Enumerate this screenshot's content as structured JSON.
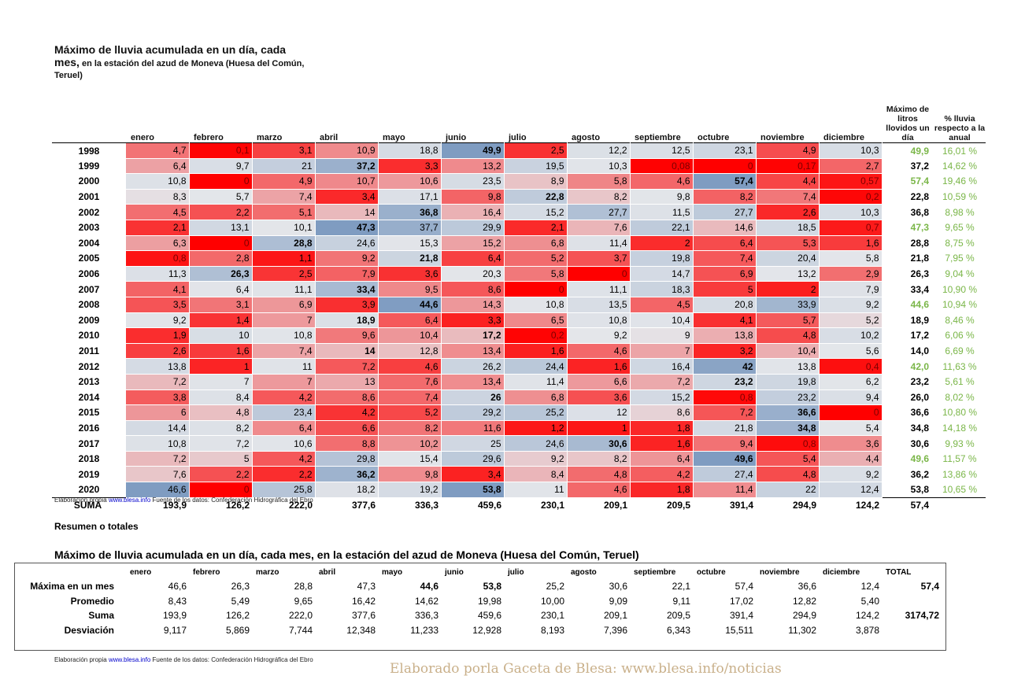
{
  "title": {
    "line1": "Máximo de lluvia acumulada en un día, cada",
    "line2_bold": "mes,",
    "line2_small": " en la estación del azud de Moneva (Huesa del Común,",
    "line3_small": "Teruel)"
  },
  "months": [
    "enero",
    "febrero",
    "marzo",
    "abril",
    "mayo",
    "junio",
    "julio",
    "agosto",
    "septiembre",
    "octubre",
    "noviembre",
    "diciembre"
  ],
  "max_header": "Máximo de litros llovidos un día",
  "pct_header": "% lluvia respecto a la anual",
  "rows": [
    {
      "year": "1998",
      "v": [
        "4,7",
        "0,1",
        "3,1",
        "10,9",
        "18,8",
        "49,9",
        "2,5",
        "12,2",
        "12,5",
        "23,1",
        "4,9",
        "10,3"
      ],
      "max": "49,9",
      "pct": "16,01 %",
      "green": true
    },
    {
      "year": "1999",
      "v": [
        "6,4",
        "9,7",
        "21",
        "37,2",
        "3,3",
        "13,2",
        "19,5",
        "10,3",
        "0,08",
        "0",
        "0,17",
        "2,7"
      ],
      "max": "37,2",
      "pct": "14,62 %",
      "green": false
    },
    {
      "year": "2000",
      "v": [
        "10,8",
        "0",
        "4,9",
        "10,7",
        "10,6",
        "23,5",
        "8,9",
        "5,8",
        "4,6",
        "57,4",
        "4,4",
        "0,57"
      ],
      "max": "57,4",
      "pct": "19,46 %",
      "green": true
    },
    {
      "year": "2001",
      "v": [
        "8,3",
        "5,7",
        "7,4",
        "3,4",
        "17,1",
        "9,8",
        "22,8",
        "8,2",
        "9,8",
        "8,2",
        "7,4",
        "0,2"
      ],
      "max": "22,8",
      "pct": "10,59 %",
      "green": false
    },
    {
      "year": "2002",
      "v": [
        "4,5",
        "2,2",
        "5,1",
        "14",
        "36,8",
        "16,4",
        "15,2",
        "27,7",
        "11,5",
        "27,7",
        "2,6",
        "10,3"
      ],
      "max": "36,8",
      "pct": "8,98 %",
      "green": false
    },
    {
      "year": "2003",
      "v": [
        "2,1",
        "13,1",
        "10,1",
        "47,3",
        "37,7",
        "29,9",
        "2,1",
        "7,6",
        "22,1",
        "14,6",
        "18,5",
        "0,7"
      ],
      "max": "47,3",
      "pct": "9,65 %",
      "green": true
    },
    {
      "year": "2004",
      "v": [
        "6,3",
        "0",
        "28,8",
        "24,6",
        "15,3",
        "15,2",
        "6,8",
        "11,4",
        "2",
        "6,4",
        "5,3",
        "1,6"
      ],
      "max": "28,8",
      "pct": "8,75 %",
      "green": false
    },
    {
      "year": "2005",
      "v": [
        "0,8",
        "2,8",
        "1,1",
        "9,2",
        "21,8",
        "6,4",
        "5,2",
        "3,7",
        "19,8",
        "7,4",
        "20,4",
        "5,8"
      ],
      "max": "21,8",
      "pct": "7,95 %",
      "green": false
    },
    {
      "year": "2006",
      "v": [
        "11,3",
        "26,3",
        "2,5",
        "7,9",
        "3,6",
        "20,3",
        "5,8",
        "0",
        "14,7",
        "6,9",
        "13,2",
        "2,9"
      ],
      "max": "26,3",
      "pct": "9,04 %",
      "green": false
    },
    {
      "year": "2007",
      "v": [
        "4,1",
        "6,4",
        "11,1",
        "33,4",
        "9,5",
        "8,6",
        "0",
        "11,1",
        "18,3",
        "5",
        "2",
        "7,9"
      ],
      "max": "33,4",
      "pct": "10,90 %",
      "green": false
    },
    {
      "year": "2008",
      "v": [
        "3,5",
        "3,1",
        "6,9",
        "3,9",
        "44,6",
        "14,3",
        "10,8",
        "13,5",
        "4,5",
        "20,8",
        "33,9",
        "9,2"
      ],
      "max": "44,6",
      "pct": "10,94 %",
      "green": true
    },
    {
      "year": "2009",
      "v": [
        "9,2",
        "1,4",
        "7",
        "18,9",
        "6,4",
        "3,3",
        "6,5",
        "10,8",
        "10,4",
        "4,1",
        "5,7",
        "5,2"
      ],
      "max": "18,9",
      "pct": "8,46 %",
      "green": false
    },
    {
      "year": "2010",
      "v": [
        "1,9",
        "10",
        "10,8",
        "9,6",
        "10,4",
        "17,2",
        "0,2",
        "9,2",
        "9",
        "13,8",
        "4,8",
        "10,2"
      ],
      "max": "17,2",
      "pct": "6,06 %",
      "green": false
    },
    {
      "year": "2011",
      "v": [
        "2,6",
        "1,6",
        "7,4",
        "14",
        "12,8",
        "13,4",
        "1,6",
        "4,6",
        "7",
        "3,2",
        "10,4",
        "5,6"
      ],
      "max": "14,0",
      "pct": "6,69 %",
      "green": false
    },
    {
      "year": "2012",
      "v": [
        "13,8",
        "1",
        "11",
        "7,2",
        "4,6",
        "26,2",
        "24,4",
        "1,6",
        "16,4",
        "42",
        "13,8",
        "0,4"
      ],
      "max": "42,0",
      "pct": "11,63 %",
      "green": true
    },
    {
      "year": "2013",
      "v": [
        "7,2",
        "7",
        "7",
        "13",
        "7,6",
        "13,4",
        "11,4",
        "6,6",
        "7,2",
        "23,2",
        "19,8",
        "6,2"
      ],
      "max": "23,2",
      "pct": "5,61 %",
      "green": false
    },
    {
      "year": "2014",
      "v": [
        "3,8",
        "8,4",
        "4,2",
        "8,6",
        "7,4",
        "26",
        "6,8",
        "3,6",
        "15,2",
        "0,8",
        "23,2",
        "9,4"
      ],
      "max": "26,0",
      "pct": "8,02 %",
      "green": false
    },
    {
      "year": "2015",
      "v": [
        "6",
        "4,8",
        "23,4",
        "4,2",
        "5,2",
        "29,2",
        "25,2",
        "12",
        "8,6",
        "7,2",
        "36,6",
        "0"
      ],
      "max": "36,6",
      "pct": "10,80 %",
      "green": false
    },
    {
      "year": "2016",
      "v": [
        "14,4",
        "8,2",
        "6,4",
        "6,6",
        "8,2",
        "11,6",
        "1,2",
        "1",
        "1,8",
        "21,8",
        "34,8",
        "5,4"
      ],
      "max": "34,8",
      "pct": "14,18 %",
      "green": false
    },
    {
      "year": "2017",
      "v": [
        "10,8",
        "7,2",
        "10,6",
        "8,8",
        "10,2",
        "25",
        "24,6",
        "30,6",
        "1,6",
        "9,4",
        "0,8",
        "3,6"
      ],
      "max": "30,6",
      "pct": "9,93 %",
      "green": false
    },
    {
      "year": "2018",
      "v": [
        "7,2",
        "5",
        "4,2",
        "29,8",
        "15,4",
        "29,6",
        "9,2",
        "8,2",
        "6,4",
        "49,6",
        "5,4",
        "4,4"
      ],
      "max": "49,6",
      "pct": "11,57 %",
      "green": true
    },
    {
      "year": "2019",
      "v": [
        "7,6",
        "2,2",
        "2,2",
        "36,2",
        "9,8",
        "3,4",
        "8,4",
        "4,8",
        "4,2",
        "27,4",
        "4,8",
        "9,2"
      ],
      "max": "36,2",
      "pct": "13,86 %",
      "green": false
    },
    {
      "year": "2020",
      "v": [
        "46,6",
        "0",
        "25,8",
        "18,2",
        "19,2",
        "53,8",
        "11",
        "4,6",
        "1,8",
        "11,4",
        "22",
        "12,4"
      ],
      "max": "53,8",
      "pct": "10,65 %",
      "green": false
    }
  ],
  "suma": {
    "label": "SUMA",
    "v": [
      "193,9",
      "126,2",
      "222,0",
      "377,6",
      "336,3",
      "459,6",
      "230,1",
      "209,1",
      "209,5",
      "391,4",
      "294,9",
      "124,2"
    ],
    "max": "57,4"
  },
  "credit": {
    "pre": "Elaboración propia ",
    "link": "www.blesa.info",
    "post": " Fuente de los datos: Confederación Hidrográfica del Ebro"
  },
  "subhead": "Resumen o totales",
  "title2": "Máximo de lluvia acumulada en un día, cada mes, en la estación del azud de Moneva (Huesa del Común, Teruel)",
  "summary": {
    "total_label": "TOTAL",
    "rows": [
      {
        "label": "Máxima en un mes",
        "v": [
          "46,6",
          "26,3",
          "28,8",
          "47,3",
          "44,6",
          "53,8",
          "25,2",
          "30,6",
          "22,1",
          "57,4",
          "36,6",
          "12,4"
        ],
        "total": "57,4"
      },
      {
        "label": "Promedio",
        "v": [
          "8,43",
          "5,49",
          "9,65",
          "16,42",
          "14,62",
          "19,98",
          "10,00",
          "9,09",
          "9,11",
          "17,02",
          "12,82",
          "5,40"
        ],
        "total": ""
      },
      {
        "label": "Suma",
        "v": [
          "193,9",
          "126,2",
          "222,0",
          "377,6",
          "336,3",
          "459,6",
          "230,1",
          "209,1",
          "209,5",
          "391,4",
          "294,9",
          "124,2"
        ],
        "total": "3174,72"
      },
      {
        "label": "Desviación",
        "v": [
          "9,117",
          "5,869",
          "7,744",
          "12,348",
          "11,233",
          "12,928",
          "8,193",
          "7,396",
          "6,343",
          "15,511",
          "11,302",
          "3,878"
        ],
        "total": ""
      }
    ]
  },
  "footer": "Elaborado porla Gaceta de Blesa:  www.blesa.info/noticias",
  "colors": {
    "red": "#ff0000",
    "blue": "#7f9cc1",
    "gray": "#a1aab5",
    "neutral": "#e4e6ea",
    "green": "#7ab648"
  }
}
